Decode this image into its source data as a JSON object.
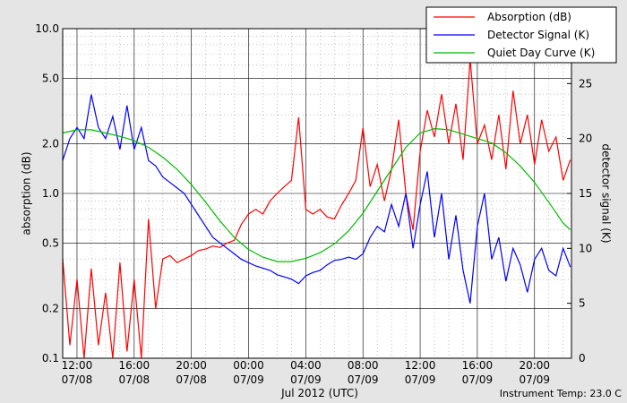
{
  "chart_data": {
    "type": "line",
    "log_y": true,
    "grid": true,
    "xlabel": "Jul 2012 (UTC)",
    "ylabel": "absorption (dB)",
    "y2label": "detector signal (K)",
    "annotation": "Instrument Temp: 23.0 C",
    "legend": "upper right",
    "xlim": [
      "2012-07-08T11:00",
      "2012-07-09T22:35"
    ],
    "xticks": [
      {
        "value": "2012-07-08T12:00",
        "label": "12:00\n07/08"
      },
      {
        "value": "2012-07-08T16:00",
        "label": "16:00\n07/08"
      },
      {
        "value": "2012-07-08T20:00",
        "label": "20:00\n07/08"
      },
      {
        "value": "2012-07-09T00:00",
        "label": "00:00\n07/09"
      },
      {
        "value": "2012-07-09T04:00",
        "label": "04:00\n07/09"
      },
      {
        "value": "2012-07-09T08:00",
        "label": "08:00\n07/09"
      },
      {
        "value": "2012-07-09T12:00",
        "label": "12:00\n07/09"
      },
      {
        "value": "2012-07-09T16:00",
        "label": "16:00\n07/09"
      },
      {
        "value": "2012-07-09T20:00",
        "label": "20:00\n07/09"
      }
    ],
    "x_minor_ticks": [
      "2012-07-08T13:00",
      "2012-07-08T14:00",
      "2012-07-08T15:00",
      "2012-07-08T17:00",
      "2012-07-08T18:00",
      "2012-07-08T19:00",
      "2012-07-08T21:00",
      "2012-07-08T22:00",
      "2012-07-08T23:00",
      "2012-07-09T01:00",
      "2012-07-09T02:00",
      "2012-07-09T03:00",
      "2012-07-09T05:00",
      "2012-07-09T06:00",
      "2012-07-09T07:00",
      "2012-07-09T09:00",
      "2012-07-09T10:00",
      "2012-07-09T11:00",
      "2012-07-09T13:00",
      "2012-07-09T14:00",
      "2012-07-09T15:00",
      "2012-07-09T17:00",
      "2012-07-09T18:00",
      "2012-07-09T19:00",
      "2012-07-09T21:00",
      "2012-07-09T22:00"
    ],
    "ylim": [
      0.1,
      10
    ],
    "yticks": [
      0.1,
      0.2,
      0.5,
      {
        "value": 1,
        "label": "1.0"
      },
      {
        "value": 2,
        "label": "2.0"
      },
      {
        "value": 5,
        "label": "5.0"
      },
      {
        "value": 10,
        "label": "10.0"
      }
    ],
    "y_minor_ticks": [
      0.3,
      0.4,
      0.6,
      0.7,
      0.8,
      0.9,
      3,
      4,
      6,
      7,
      8,
      9
    ],
    "y2lim": [
      0,
      30
    ],
    "y2ticks": [
      0,
      5,
      10,
      15,
      20,
      25
    ],
    "x": [
      "2012-07-08T11:00",
      "2012-07-08T11:30",
      "2012-07-08T12:00",
      "2012-07-08T12:30",
      "2012-07-08T13:00",
      "2012-07-08T13:30",
      "2012-07-08T14:00",
      "2012-07-08T14:30",
      "2012-07-08T15:00",
      "2012-07-08T15:30",
      "2012-07-08T16:00",
      "2012-07-08T16:30",
      "2012-07-08T17:00",
      "2012-07-08T17:30",
      "2012-07-08T18:00",
      "2012-07-08T18:30",
      "2012-07-08T19:00",
      "2012-07-08T19:30",
      "2012-07-08T20:00",
      "2012-07-08T20:30",
      "2012-07-08T21:00",
      "2012-07-08T21:30",
      "2012-07-08T22:00",
      "2012-07-08T22:30",
      "2012-07-08T23:00",
      "2012-07-08T23:30",
      "2012-07-09T00:00",
      "2012-07-09T00:30",
      "2012-07-09T01:00",
      "2012-07-09T01:30",
      "2012-07-09T02:00",
      "2012-07-09T02:30",
      "2012-07-09T03:00",
      "2012-07-09T03:30",
      "2012-07-09T04:00",
      "2012-07-09T04:30",
      "2012-07-09T05:00",
      "2012-07-09T05:30",
      "2012-07-09T06:00",
      "2012-07-09T06:30",
      "2012-07-09T07:00",
      "2012-07-09T07:30",
      "2012-07-09T08:00",
      "2012-07-09T08:30",
      "2012-07-09T09:00",
      "2012-07-09T09:30",
      "2012-07-09T10:00",
      "2012-07-09T10:30",
      "2012-07-09T11:00",
      "2012-07-09T11:30",
      "2012-07-09T12:00",
      "2012-07-09T12:30",
      "2012-07-09T13:00",
      "2012-07-09T13:30",
      "2012-07-09T14:00",
      "2012-07-09T14:30",
      "2012-07-09T15:00",
      "2012-07-09T15:30",
      "2012-07-09T16:00",
      "2012-07-09T16:30",
      "2012-07-09T17:00",
      "2012-07-09T17:30",
      "2012-07-09T18:00",
      "2012-07-09T18:30",
      "2012-07-09T19:00",
      "2012-07-09T19:30",
      "2012-07-09T20:00",
      "2012-07-09T20:30",
      "2012-07-09T21:00",
      "2012-07-09T21:30",
      "2012-07-09T22:00",
      "2012-07-09T22:30"
    ],
    "series": [
      {
        "name": "Absorption (dB)",
        "color": "#ff0000",
        "axis": "y",
        "values": [
          0.4,
          0.12,
          0.3,
          0.1,
          0.35,
          0.12,
          0.25,
          0.1,
          0.38,
          0.11,
          0.3,
          0.1,
          0.7,
          0.2,
          0.4,
          0.42,
          0.38,
          0.4,
          0.42,
          0.45,
          0.46,
          0.48,
          0.47,
          0.5,
          0.52,
          0.65,
          0.75,
          0.8,
          0.75,
          0.9,
          1.0,
          1.1,
          1.2,
          2.9,
          0.8,
          0.75,
          0.8,
          0.72,
          0.7,
          0.85,
          1.0,
          1.2,
          2.5,
          1.1,
          1.5,
          0.9,
          1.4,
          2.8,
          1.0,
          0.6,
          1.8,
          3.2,
          2.2,
          4.0,
          2.0,
          3.5,
          1.6,
          6.5,
          2.0,
          2.6,
          1.6,
          3.0,
          1.4,
          4.2,
          2.0,
          3.0,
          1.5,
          2.8,
          1.8,
          2.2,
          1.2,
          1.6
        ]
      },
      {
        "name": "Detector Signal (K)",
        "color": "#0000ff",
        "axis": "y2",
        "values": [
          18,
          20,
          21,
          20,
          24,
          21,
          20,
          22,
          19,
          23,
          19,
          21,
          18,
          17.5,
          16.5,
          16,
          15.5,
          15,
          14,
          13,
          12,
          11,
          10.5,
          10,
          9.5,
          9,
          8.7,
          8.4,
          8.2,
          8.0,
          7.6,
          7.4,
          7.2,
          6.8,
          7.5,
          7.8,
          8.0,
          8.5,
          8.9,
          9.0,
          9.2,
          9.0,
          9.5,
          11,
          12,
          11.5,
          14,
          12,
          15,
          10,
          14,
          17,
          11,
          15,
          9,
          13,
          8,
          5,
          12,
          15,
          9,
          11,
          7,
          10,
          8.5,
          6,
          9,
          10,
          8,
          7.5,
          10,
          8.3
        ]
      },
      {
        "name": "Quiet Day Curve (K)",
        "color": "#00bb00",
        "axis": "y2",
        "x": [
          "2012-07-08T11:00",
          "2012-07-08T12:00",
          "2012-07-08T13:00",
          "2012-07-08T14:00",
          "2012-07-08T15:00",
          "2012-07-08T16:00",
          "2012-07-08T17:00",
          "2012-07-08T18:00",
          "2012-07-08T19:00",
          "2012-07-08T20:00",
          "2012-07-08T21:00",
          "2012-07-08T22:00",
          "2012-07-08T23:00",
          "2012-07-09T00:00",
          "2012-07-09T01:00",
          "2012-07-09T02:00",
          "2012-07-09T03:00",
          "2012-07-09T04:00",
          "2012-07-09T05:00",
          "2012-07-09T06:00",
          "2012-07-09T07:00",
          "2012-07-09T08:00",
          "2012-07-09T09:00",
          "2012-07-09T10:00",
          "2012-07-09T11:00",
          "2012-07-09T12:00",
          "2012-07-09T13:00",
          "2012-07-09T14:00",
          "2012-07-09T15:00",
          "2012-07-09T16:00",
          "2012-07-09T17:00",
          "2012-07-09T18:00",
          "2012-07-09T19:00",
          "2012-07-09T20:00",
          "2012-07-09T21:00",
          "2012-07-09T22:00",
          "2012-07-09T22:30"
        ],
        "values": [
          20.5,
          20.8,
          20.8,
          20.5,
          20.2,
          19.8,
          19.2,
          18.3,
          17.2,
          15.8,
          14.2,
          12.5,
          11,
          9.9,
          9.2,
          8.8,
          8.8,
          9.1,
          9.6,
          10.4,
          11.6,
          13.2,
          15.2,
          17.2,
          19.2,
          20.5,
          20.9,
          20.8,
          20.4,
          20.0,
          19.6,
          18.7,
          17.5,
          16,
          14.2,
          12.3,
          11.7
        ]
      }
    ]
  }
}
